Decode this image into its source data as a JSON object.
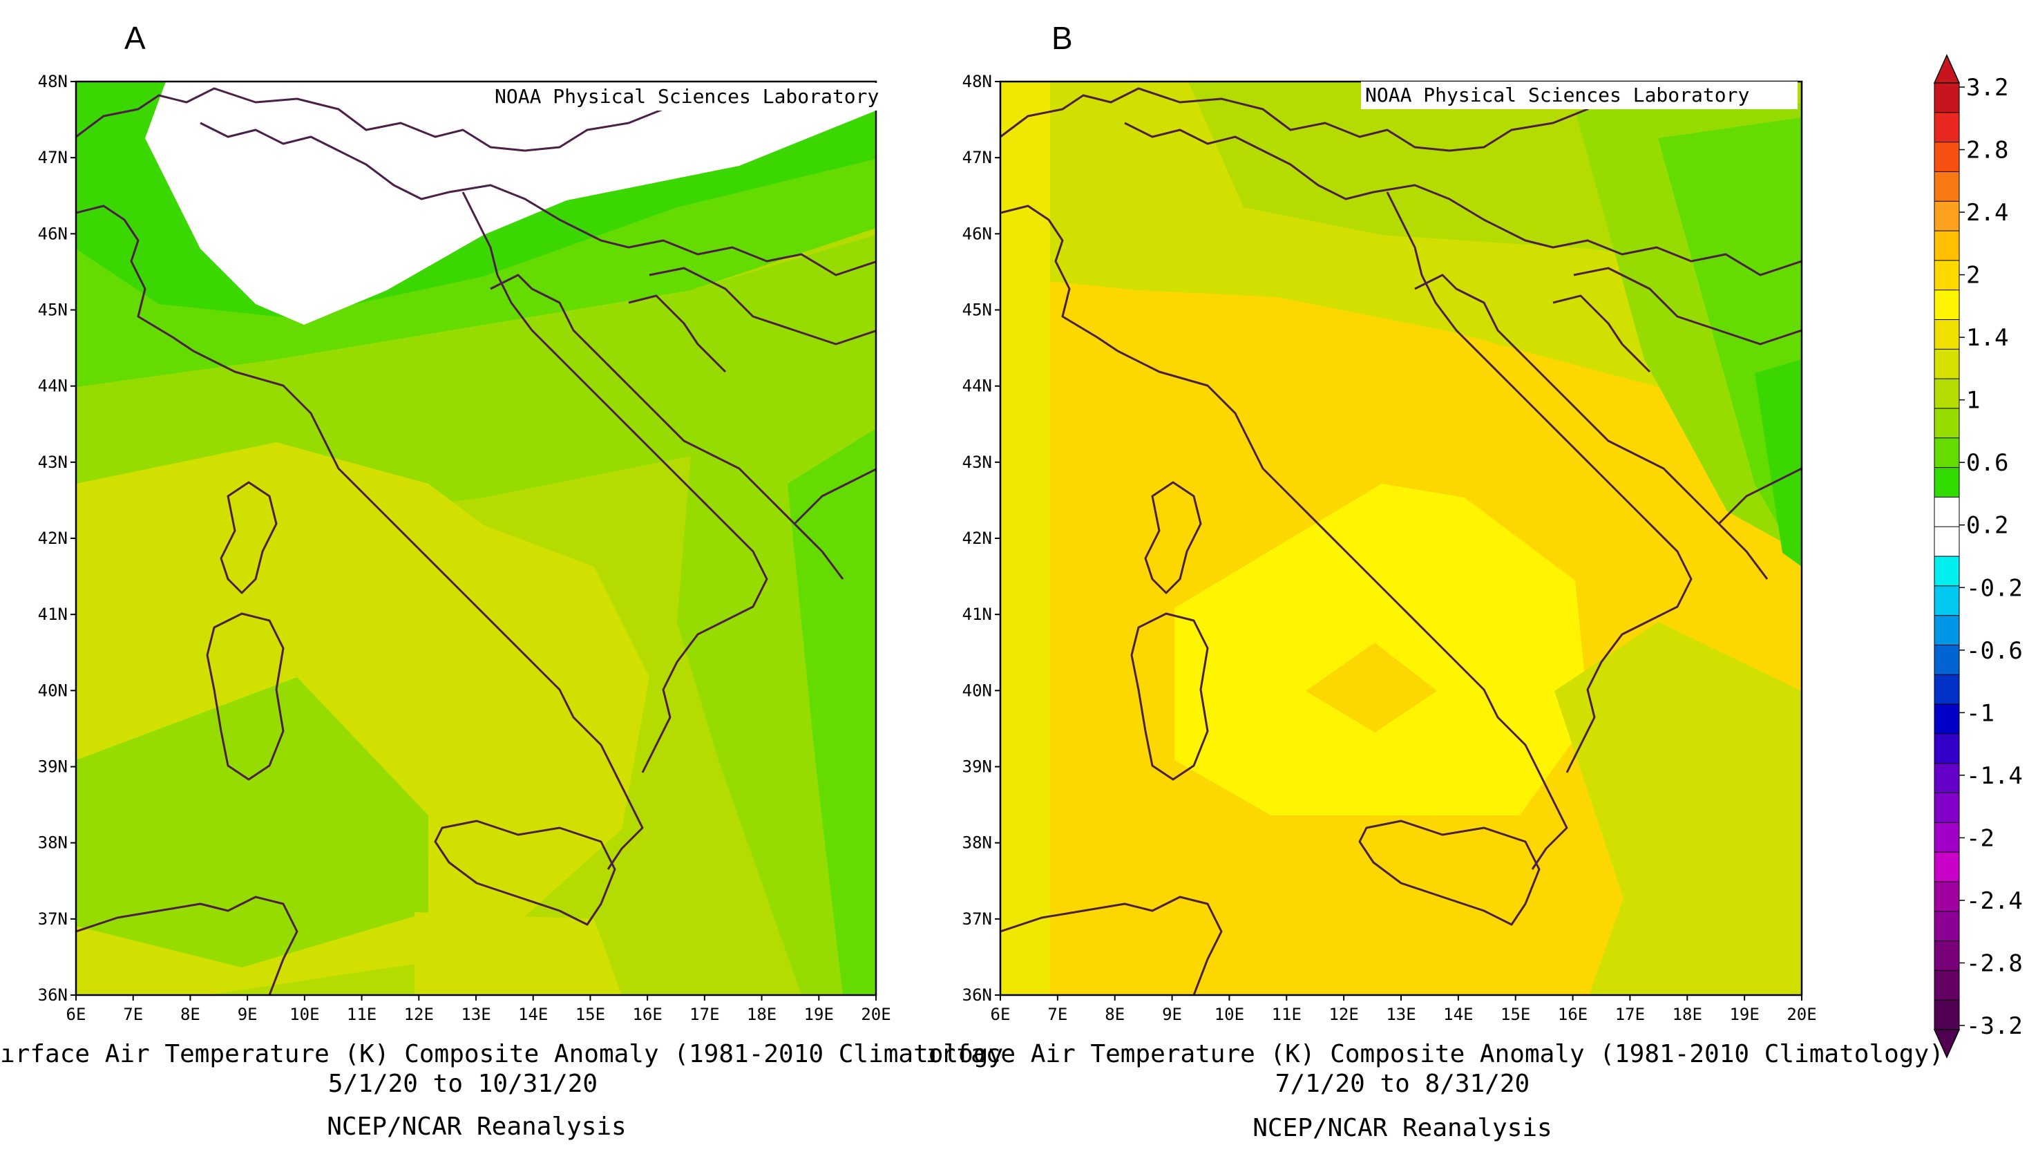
{
  "panel_a": {
    "letter": "A",
    "credit": "NOAA Physical Sciences Laboratory",
    "y_ticks": [
      "48N",
      "47N",
      "46N",
      "45N",
      "44N",
      "43N",
      "42N",
      "41N",
      "40N",
      "39N",
      "38N",
      "37N",
      "36N"
    ],
    "x_ticks": [
      "6E",
      "7E",
      "8E",
      "9E",
      "10E",
      "11E",
      "12E",
      "13E",
      "14E",
      "15E",
      "16E",
      "17E",
      "18E",
      "19E",
      "20E"
    ],
    "title_line1": "ırface Air Temperature (K) Composite Anomaly (1981-2010 Climatology",
    "title_line2": "5/1/20  to 10/31/20",
    "title_line3": "NCEP/NCAR Reanalysis"
  },
  "panel_b": {
    "letter": "B",
    "credit": "NOAA Physical Sciences Laboratory",
    "y_ticks": [
      "48N",
      "47N",
      "46N",
      "45N",
      "44N",
      "43N",
      "42N",
      "41N",
      "40N",
      "39N",
      "38N",
      "37N",
      "36N"
    ],
    "x_ticks": [
      "6E",
      "7E",
      "8E",
      "9E",
      "10E",
      "11E",
      "12E",
      "13E",
      "14E",
      "15E",
      "16E",
      "17E",
      "18E",
      "19E",
      "20E"
    ],
    "title_line1": "ırface Air Temperature (K) Composite Anomaly (1981-2010 Climatology)",
    "title_line2": "7/1/20  to 8/31/20",
    "title_line3": "NCEP/NCAR Reanalysis"
  },
  "colorbar": {
    "labels": [
      "3.2",
      "2.8",
      "2.4",
      "2",
      "1.4",
      "1",
      "0.6",
      "0.2",
      "-0.2",
      "-0.6",
      "-1",
      "-1.4",
      "-2",
      "-2.4",
      "-2.8",
      "-3.2"
    ],
    "colors": [
      "#c8141e",
      "#e8281e",
      "#f85010",
      "#fa7814",
      "#fca01e",
      "#ffc000",
      "#ffd800",
      "#fff500",
      "#f0e000",
      "#d4e000",
      "#b4dc00",
      "#96dc00",
      "#64dc00",
      "#32dc00",
      "#ffffff",
      "#ffffff",
      "#00f0f0",
      "#00c8f0",
      "#0096e6",
      "#0064d2",
      "#0032c8",
      "#0000c8",
      "#3200c8",
      "#6400c8",
      "#8200c8",
      "#a000c8",
      "#c800c8",
      "#a000a0",
      "#8c0096",
      "#780078",
      "#640064",
      "#500050"
    ]
  },
  "colors": {
    "green_dark": "#3ad800",
    "green": "#64dc00",
    "yellow_green": "#96dc00",
    "lime": "#b4dc00",
    "olive_yellow": "#d2e000",
    "yellow": "#f0e800",
    "gold": "#fcd800",
    "bright_yellow": "#fff500",
    "coast": "#4a1f48"
  }
}
